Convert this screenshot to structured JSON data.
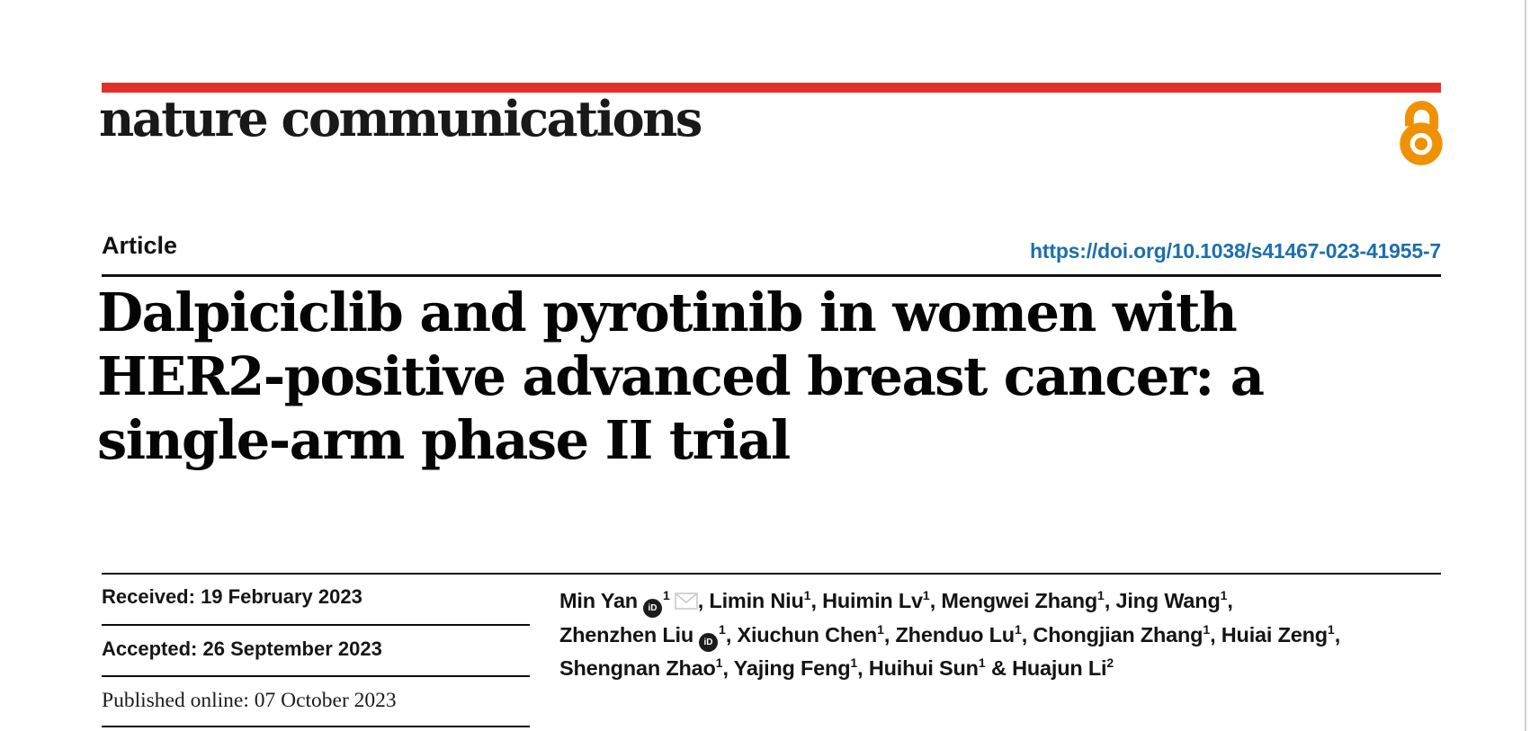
{
  "theme": {
    "red_bar": "#e23128",
    "open_access_orange": "#f09104",
    "doi_link": "#1c6fad",
    "envelope_gray": "#c9c9c9"
  },
  "journal": {
    "name": "nature communications"
  },
  "article": {
    "type_label": "Article",
    "doi": "https://doi.org/10.1038/s41467-023-41955-7",
    "title_lines": [
      "Dalpiciclib and pyrotinib in women with",
      "HER2-positive advanced breast cancer: a",
      "single-arm phase II trial"
    ]
  },
  "history": {
    "rows": [
      {
        "label": "Received:",
        "value": "19 February 2023"
      },
      {
        "label": "Accepted:",
        "value": "26 September 2023"
      },
      {
        "label": "Published online:",
        "value": "07 October 2023"
      }
    ]
  },
  "icons": {
    "orcid_glyph": "iD",
    "orcid_name": "orcid-icon",
    "envelope_name": "email-envelope-icon",
    "open_access_name": "open-access-icon"
  },
  "authors": {
    "lines": [
      {
        "segments": [
          {
            "text": "Min Yan"
          },
          {
            "icon": "orcid"
          },
          {
            "sup": "1"
          },
          {
            "icon": "envelope"
          },
          {
            "text": ", Limin Niu"
          },
          {
            "sup": "1"
          },
          {
            "text": ", Huimin Lv"
          },
          {
            "sup": "1"
          },
          {
            "text": ", Mengwei Zhang"
          },
          {
            "sup": "1"
          },
          {
            "text": ", Jing Wang"
          },
          {
            "sup": "1"
          },
          {
            "text": ","
          }
        ]
      },
      {
        "segments": [
          {
            "text": "Zhenzhen Liu"
          },
          {
            "icon": "orcid"
          },
          {
            "sup": "1"
          },
          {
            "text": ", Xiuchun Chen"
          },
          {
            "sup": "1"
          },
          {
            "text": ", Zhenduo Lu"
          },
          {
            "sup": "1"
          },
          {
            "text": ", Chongjian Zhang"
          },
          {
            "sup": "1"
          },
          {
            "text": ", Huiai Zeng"
          },
          {
            "sup": "1"
          },
          {
            "text": ","
          }
        ]
      },
      {
        "segments": [
          {
            "text": "Shengnan Zhao"
          },
          {
            "sup": "1"
          },
          {
            "text": ", Yajing Feng"
          },
          {
            "sup": "1"
          },
          {
            "text": ", Huihui Sun"
          },
          {
            "sup": "1"
          },
          {
            "text": " & Huajun Li"
          },
          {
            "sup": "2"
          }
        ]
      }
    ]
  }
}
